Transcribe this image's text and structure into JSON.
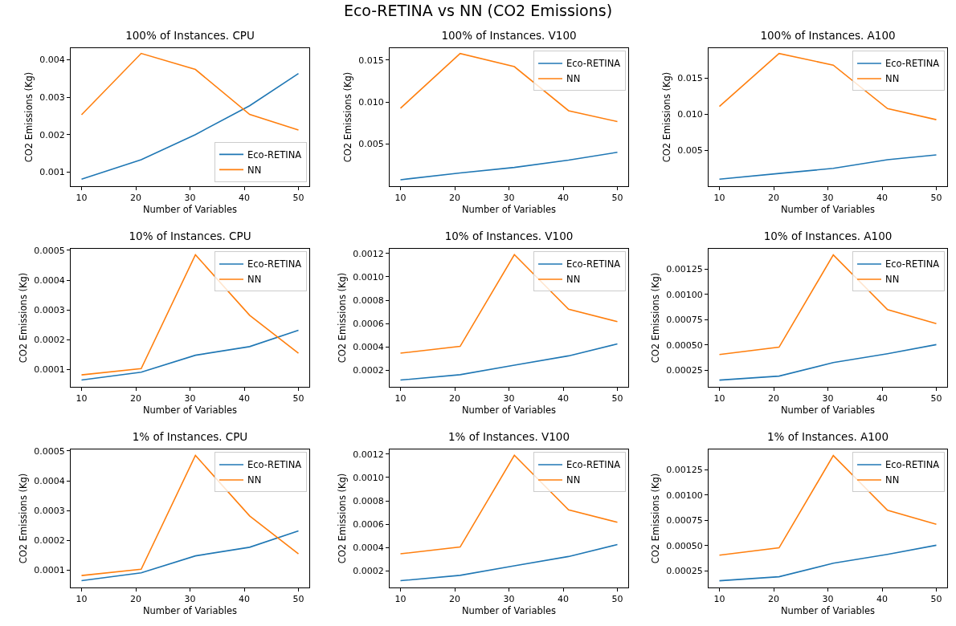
{
  "chart_data": [
    {
      "type": "line",
      "title": "100% of Instances. CPU",
      "xlabel": "Number of Variables",
      "ylabel": "CO2 Emissions (Kg)",
      "annotations": [
        "Eco-RETINA vs NN (CO2 Emissions)"
      ],
      "x": [
        10,
        21,
        31,
        41,
        50
      ],
      "xlim": [
        8,
        52
      ],
      "xticks": [
        10,
        20,
        30,
        40,
        50
      ],
      "ylim": [
        0.00062,
        0.00431
      ],
      "yticks": [
        0.001,
        0.002,
        0.003,
        0.004
      ],
      "legend": "bottom right",
      "grid": false,
      "series": [
        {
          "name": "Eco-RETINA",
          "color": "#1f77b4",
          "values": [
            0.00081,
            0.00133,
            0.002,
            0.00277,
            0.00363
          ]
        },
        {
          "name": "NN",
          "color": "#ff7f0e",
          "values": [
            0.00253,
            0.00417,
            0.00374,
            0.00254,
            0.00212
          ]
        }
      ]
    },
    {
      "type": "line",
      "title": "100% of Instances. V100",
      "xlabel": "Number of Variables",
      "ylabel": "CO2 Emissions (Kg)",
      "x": [
        10,
        21,
        31,
        41,
        50
      ],
      "xlim": [
        8,
        52
      ],
      "xticks": [
        10,
        20,
        30,
        40,
        50
      ],
      "ylim": [
        0,
        0.0164
      ],
      "yticks": [
        {
          "value": 0.005,
          "label": "0.005"
        },
        {
          "value": 0.01,
          "label": "0.010"
        },
        {
          "value": 0.015,
          "label": "0.015"
        }
      ],
      "legend": "top right",
      "grid": false,
      "series": [
        {
          "name": "Eco-RETINA",
          "color": "#1f77b4",
          "values": [
            0.00077,
            0.00158,
            0.00223,
            0.0031,
            0.00403
          ]
        },
        {
          "name": "NN",
          "color": "#ff7f0e",
          "values": [
            0.00926,
            0.01577,
            0.0142,
            0.00897,
            0.00768
          ]
        }
      ]
    },
    {
      "type": "line",
      "title": "100% of Instances. A100",
      "xlabel": "Number of Variables",
      "ylabel": "CO2 Emissions (Kg)",
      "x": [
        10,
        21,
        31,
        41,
        50
      ],
      "xlim": [
        8,
        52
      ],
      "xticks": [
        10,
        20,
        30,
        40,
        50
      ],
      "ylim": [
        0,
        0.0192
      ],
      "yticks": [
        {
          "value": 0.005,
          "label": "0.005"
        },
        {
          "value": 0.01,
          "label": "0.010"
        },
        {
          "value": 0.015,
          "label": "0.015"
        }
      ],
      "legend": "top right",
      "grid": false,
      "series": [
        {
          "name": "Eco-RETINA",
          "color": "#1f77b4",
          "values": [
            0.00098,
            0.00177,
            0.00248,
            0.00368,
            0.00436
          ]
        },
        {
          "name": "NN",
          "color": "#ff7f0e",
          "values": [
            0.0111,
            0.01846,
            0.01684,
            0.01079,
            0.00925
          ]
        }
      ]
    },
    {
      "type": "line",
      "title": "10% of Instances. CPU",
      "xlabel": "Number of Variables",
      "ylabel": "CO2 Emissions (Kg)",
      "x": [
        10,
        21,
        31,
        41,
        50
      ],
      "xlim": [
        8,
        52
      ],
      "xticks": [
        10,
        20,
        30,
        40,
        50
      ],
      "ylim": [
        4.2e-05,
        0.000505
      ],
      "yticks": [
        0.0001,
        0.0002,
        0.0003,
        0.0004,
        0.0005
      ],
      "legend": "top right",
      "grid": false,
      "series": [
        {
          "name": "Eco-RETINA",
          "color": "#1f77b4",
          "values": [
            6.5e-05,
            9.1e-05,
            0.000148,
            0.000177,
            0.000232
          ]
        },
        {
          "name": "NN",
          "color": "#ff7f0e",
          "values": [
            8.2e-05,
            0.000103,
            0.000485,
            0.000282,
            0.000155
          ]
        }
      ]
    },
    {
      "type": "line",
      "title": "10% of Instances. V100",
      "xlabel": "Number of Variables",
      "ylabel": "CO2 Emissions (Kg)",
      "x": [
        10,
        21,
        31,
        41,
        50
      ],
      "xlim": [
        8,
        52
      ],
      "xticks": [
        10,
        20,
        30,
        40,
        50
      ],
      "ylim": [
        5.9e-05,
        0.00124
      ],
      "yticks": [
        0.0002,
        0.0004,
        0.0006,
        0.0008,
        {
          "value": 0.001,
          "label": "0.0010"
        },
        0.0012
      ],
      "legend": "top right",
      "grid": false,
      "series": [
        {
          "name": "Eco-RETINA",
          "color": "#1f77b4",
          "values": [
            0.000117,
            0.000163,
            0.000244,
            0.000324,
            0.000426
          ]
        },
        {
          "name": "NN",
          "color": "#ff7f0e",
          "values": [
            0.000347,
            0.000405,
            0.00119,
            0.000723,
            0.000617
          ]
        }
      ]
    },
    {
      "type": "line",
      "title": "10% of Instances. A100",
      "xlabel": "Number of Variables",
      "ylabel": "CO2 Emissions (Kg)",
      "x": [
        10,
        21,
        31,
        41,
        50
      ],
      "xlim": [
        8,
        52
      ],
      "xticks": [
        10,
        20,
        30,
        40,
        50
      ],
      "ylim": [
        8.8e-05,
        0.00145
      ],
      "yticks": [
        {
          "value": 0.00025,
          "label": "0.00025"
        },
        {
          "value": 0.0005,
          "label": "0.00050"
        },
        {
          "value": 0.00075,
          "label": "0.00075"
        },
        {
          "value": 0.001,
          "label": "0.00100"
        },
        {
          "value": 0.00125,
          "label": "0.00125"
        }
      ],
      "legend": "top right",
      "grid": false,
      "series": [
        {
          "name": "Eco-RETINA",
          "color": "#1f77b4",
          "values": [
            0.000154,
            0.000194,
            0.000327,
            0.000415,
            0.000505
          ]
        },
        {
          "name": "NN",
          "color": "#ff7f0e",
          "values": [
            0.000407,
            0.000479,
            0.00139,
            0.00085,
            0.000712
          ]
        }
      ]
    },
    {
      "type": "line",
      "title": "1% of Instances. CPU",
      "xlabel": "Number of Variables",
      "ylabel": "CO2 Emissions (Kg)",
      "x": [
        10,
        21,
        31,
        41,
        50
      ],
      "xlim": [
        8,
        52
      ],
      "xticks": [
        10,
        20,
        30,
        40,
        50
      ],
      "ylim": [
        4.2e-05,
        0.000505
      ],
      "yticks": [
        0.0001,
        0.0002,
        0.0003,
        0.0004,
        0.0005
      ],
      "legend": "top right",
      "grid": false,
      "series": [
        {
          "name": "Eco-RETINA",
          "color": "#1f77b4",
          "values": [
            6.5e-05,
            9.1e-05,
            0.000148,
            0.000177,
            0.000232
          ]
        },
        {
          "name": "NN",
          "color": "#ff7f0e",
          "values": [
            8.2e-05,
            0.000103,
            0.000485,
            0.000282,
            0.000155
          ]
        }
      ]
    },
    {
      "type": "line",
      "title": "1% of Instances. V100",
      "xlabel": "Number of Variables",
      "ylabel": "CO2 Emissions (Kg)",
      "x": [
        10,
        21,
        31,
        41,
        50
      ],
      "xlim": [
        8,
        52
      ],
      "xticks": [
        10,
        20,
        30,
        40,
        50
      ],
      "ylim": [
        5.9e-05,
        0.00124
      ],
      "yticks": [
        0.0002,
        0.0004,
        0.0006,
        0.0008,
        {
          "value": 0.001,
          "label": "0.0010"
        },
        0.0012
      ],
      "legend": "top right",
      "grid": false,
      "series": [
        {
          "name": "Eco-RETINA",
          "color": "#1f77b4",
          "values": [
            0.000117,
            0.000163,
            0.000244,
            0.000324,
            0.000426
          ]
        },
        {
          "name": "NN",
          "color": "#ff7f0e",
          "values": [
            0.000347,
            0.000405,
            0.00119,
            0.000723,
            0.000617
          ]
        }
      ]
    },
    {
      "type": "line",
      "title": "1% of Instances. A100",
      "xlabel": "Number of Variables",
      "ylabel": "CO2 Emissions (Kg)",
      "x": [
        10,
        21,
        31,
        41,
        50
      ],
      "xlim": [
        8,
        52
      ],
      "xticks": [
        10,
        20,
        30,
        40,
        50
      ],
      "ylim": [
        8.8e-05,
        0.00145
      ],
      "yticks": [
        {
          "value": 0.00025,
          "label": "0.00025"
        },
        {
          "value": 0.0005,
          "label": "0.00050"
        },
        {
          "value": 0.00075,
          "label": "0.00075"
        },
        {
          "value": 0.001,
          "label": "0.00100"
        },
        {
          "value": 0.00125,
          "label": "0.00125"
        }
      ],
      "legend": "top right",
      "grid": false,
      "series": [
        {
          "name": "Eco-RETINA",
          "color": "#1f77b4",
          "values": [
            0.000154,
            0.000194,
            0.000327,
            0.000415,
            0.000505
          ]
        },
        {
          "name": "NN",
          "color": "#ff7f0e",
          "values": [
            0.000407,
            0.000479,
            0.00139,
            0.00085,
            0.000712
          ]
        }
      ]
    }
  ]
}
